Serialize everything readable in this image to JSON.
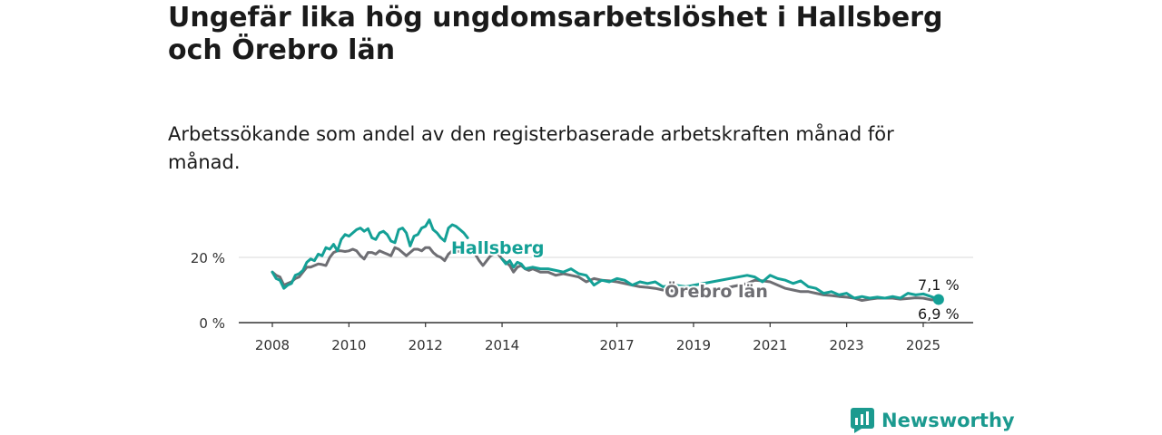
{
  "title": "Ungefär lika hög ungdomsarbetslöshet i Hallsberg och Örebro län",
  "subtitle": "Arbetssökande som andel av den registerbaserade arbetskraften månad för månad.",
  "brand": {
    "name": "Newsworthy",
    "icon": "newsworthy-logo-icon"
  },
  "colors": {
    "hallsberg": "#14a096",
    "orebro": "#6e6e73",
    "grid": "#d9d9d9",
    "axis": "#333333"
  },
  "chart_data": {
    "type": "line",
    "title": "Ungefär lika hög ungdomsarbetslöshet i Hallsberg och Örebro län",
    "subtitle": "Arbetssökande som andel av den registerbaserade arbetskraften månad för månad.",
    "x_ticks": [
      "2008",
      "2010",
      "2012",
      "2014",
      "2017",
      "2019",
      "2021",
      "2023",
      "2025"
    ],
    "y_ticks": [
      "0 %",
      "20 %"
    ],
    "ylim": [
      0,
      32
    ],
    "xlim": [
      2007.9,
      2026.3
    ],
    "grid": "horizontal",
    "legend": "inline labels",
    "series": [
      {
        "name": "Hallsberg",
        "label": "Hallsberg",
        "last_value_label": "7,1 %",
        "color": "#14a096",
        "points": [
          [
            2008.0,
            15.5
          ],
          [
            2008.1,
            13.5
          ],
          [
            2008.2,
            13.0
          ],
          [
            2008.3,
            10.5
          ],
          [
            2008.4,
            11.5
          ],
          [
            2008.5,
            12.0
          ],
          [
            2008.6,
            14.5
          ],
          [
            2008.7,
            15.0
          ],
          [
            2008.8,
            16.0
          ],
          [
            2008.9,
            18.5
          ],
          [
            2009.0,
            19.5
          ],
          [
            2009.1,
            19.0
          ],
          [
            2009.2,
            21.0
          ],
          [
            2009.3,
            20.5
          ],
          [
            2009.4,
            23.0
          ],
          [
            2009.5,
            22.5
          ],
          [
            2009.6,
            24.0
          ],
          [
            2009.7,
            22.0
          ],
          [
            2009.8,
            25.5
          ],
          [
            2009.9,
            27.0
          ],
          [
            2010.0,
            26.5
          ],
          [
            2010.1,
            27.5
          ],
          [
            2010.2,
            28.5
          ],
          [
            2010.3,
            29.0
          ],
          [
            2010.4,
            28.0
          ],
          [
            2010.5,
            28.8
          ],
          [
            2010.6,
            26.0
          ],
          [
            2010.7,
            25.5
          ],
          [
            2010.8,
            27.5
          ],
          [
            2010.9,
            28.0
          ],
          [
            2011.0,
            27.0
          ],
          [
            2011.1,
            25.0
          ],
          [
            2011.2,
            24.5
          ],
          [
            2011.3,
            28.5
          ],
          [
            2011.4,
            29.0
          ],
          [
            2011.5,
            27.5
          ],
          [
            2011.6,
            23.5
          ],
          [
            2011.7,
            26.5
          ],
          [
            2011.8,
            27.0
          ],
          [
            2011.9,
            29.0
          ],
          [
            2012.0,
            29.5
          ],
          [
            2012.1,
            31.5
          ],
          [
            2012.2,
            28.5
          ],
          [
            2012.3,
            27.5
          ],
          [
            2012.4,
            26.0
          ],
          [
            2012.5,
            25.0
          ],
          [
            2012.6,
            29.0
          ],
          [
            2012.7,
            30.0
          ],
          [
            2012.8,
            29.5
          ],
          [
            2012.9,
            28.5
          ],
          [
            2013.0,
            27.5
          ],
          [
            2013.1,
            26.0
          ]
        ]
      },
      {
        "name": "Örebro län",
        "label": "Örebro län",
        "last_value_label": "6,9 %",
        "color": "#6e6e73",
        "points": [
          [
            2008.0,
            15.5
          ],
          [
            2008.1,
            14.5
          ],
          [
            2008.2,
            14.0
          ],
          [
            2008.3,
            11.5
          ],
          [
            2008.4,
            12.0
          ],
          [
            2008.5,
            12.5
          ],
          [
            2008.6,
            13.5
          ],
          [
            2008.7,
            14.0
          ],
          [
            2008.8,
            15.5
          ],
          [
            2008.9,
            17.0
          ],
          [
            2009.0,
            17.0
          ],
          [
            2009.1,
            17.5
          ],
          [
            2009.2,
            18.0
          ],
          [
            2009.3,
            17.8
          ],
          [
            2009.4,
            17.5
          ],
          [
            2009.5,
            20.0
          ],
          [
            2009.6,
            21.5
          ],
          [
            2009.7,
            22.0
          ],
          [
            2009.8,
            22.0
          ],
          [
            2009.9,
            21.8
          ],
          [
            2010.0,
            22.0
          ],
          [
            2010.1,
            22.5
          ],
          [
            2010.2,
            22.0
          ],
          [
            2010.3,
            20.5
          ],
          [
            2010.4,
            19.5
          ],
          [
            2010.5,
            21.5
          ],
          [
            2010.6,
            21.5
          ],
          [
            2010.7,
            21.0
          ],
          [
            2010.8,
            22.0
          ],
          [
            2010.9,
            21.5
          ],
          [
            2011.0,
            21.0
          ],
          [
            2011.1,
            20.5
          ],
          [
            2011.2,
            23.0
          ],
          [
            2011.3,
            22.5
          ],
          [
            2011.4,
            21.5
          ],
          [
            2011.5,
            20.5
          ],
          [
            2011.6,
            21.5
          ],
          [
            2011.7,
            22.5
          ],
          [
            2011.8,
            22.5
          ],
          [
            2011.9,
            22.0
          ],
          [
            2012.0,
            23.0
          ],
          [
            2012.1,
            23.0
          ],
          [
            2012.2,
            21.5
          ],
          [
            2012.3,
            20.5
          ],
          [
            2012.4,
            20.0
          ],
          [
            2012.5,
            19.0
          ],
          [
            2012.6,
            21.0
          ],
          [
            2012.7,
            22.0
          ],
          [
            2012.8,
            22.0
          ],
          [
            2013.3,
            21.0
          ],
          [
            2013.4,
            19.0
          ],
          [
            2013.5,
            17.5
          ],
          [
            2013.6,
            19.0
          ],
          [
            2013.7,
            20.5
          ],
          [
            2013.8,
            21.0
          ],
          [
            2013.9,
            21.0
          ],
          [
            2014.0,
            19.5
          ],
          [
            2014.1,
            18.5
          ],
          [
            2014.2,
            17.5
          ],
          [
            2014.3,
            15.5
          ],
          [
            2014.4,
            17.0
          ],
          [
            2014.5,
            17.5
          ],
          [
            2014.6,
            16.5
          ],
          [
            2014.7,
            16.0
          ],
          [
            2014.8,
            16.5
          ],
          [
            2014.9,
            16.0
          ],
          [
            2015.0,
            15.5
          ],
          [
            2015.2,
            15.5
          ],
          [
            2015.4,
            14.5
          ],
          [
            2015.6,
            15.0
          ],
          [
            2015.8,
            14.5
          ],
          [
            2016.0,
            14.0
          ],
          [
            2016.2,
            12.5
          ],
          [
            2016.4,
            13.5
          ],
          [
            2016.6,
            13.0
          ],
          [
            2016.8,
            12.8
          ],
          [
            2017.0,
            12.5
          ],
          [
            2017.2,
            12.0
          ],
          [
            2017.4,
            11.5
          ],
          [
            2017.6,
            11.0
          ],
          [
            2017.8,
            10.8
          ],
          [
            2018.0,
            10.5
          ],
          [
            2018.2,
            10.0
          ],
          [
            2018.4,
            9.8
          ],
          [
            2018.6,
            9.5
          ],
          [
            2018.8,
            9.8
          ],
          [
            2019.0,
            10.0
          ],
          [
            2019.2,
            10.0
          ],
          [
            2019.4,
            10.0
          ],
          [
            2019.6,
            10.2
          ],
          [
            2019.8,
            10.5
          ],
          [
            2020.0,
            11.0
          ],
          [
            2020.2,
            11.5
          ],
          [
            2020.4,
            12.0
          ],
          [
            2020.6,
            13.0
          ],
          [
            2020.8,
            12.8
          ],
          [
            2021.0,
            12.5
          ],
          [
            2021.2,
            11.5
          ],
          [
            2021.4,
            10.5
          ],
          [
            2021.6,
            10.0
          ],
          [
            2021.8,
            9.5
          ],
          [
            2022.0,
            9.5
          ],
          [
            2022.2,
            9.0
          ],
          [
            2022.4,
            8.5
          ],
          [
            2022.6,
            8.3
          ],
          [
            2022.8,
            8.0
          ],
          [
            2023.0,
            7.8
          ],
          [
            2023.2,
            7.5
          ],
          [
            2023.4,
            6.8
          ],
          [
            2023.6,
            7.2
          ],
          [
            2023.8,
            7.5
          ],
          [
            2024.0,
            7.5
          ],
          [
            2024.2,
            7.5
          ],
          [
            2024.4,
            7.2
          ],
          [
            2024.6,
            7.4
          ],
          [
            2024.8,
            7.6
          ],
          [
            2025.0,
            7.5
          ],
          [
            2025.2,
            7.0
          ],
          [
            2025.4,
            6.9
          ]
        ]
      },
      {
        "name": "Hallsberg",
        "color": "#14a096",
        "points": [
          [
            2014.0,
            19.5
          ],
          [
            2014.1,
            18.0
          ],
          [
            2014.2,
            19.0
          ],
          [
            2014.3,
            17.0
          ],
          [
            2014.4,
            18.5
          ],
          [
            2014.5,
            18.0
          ],
          [
            2014.6,
            16.5
          ],
          [
            2014.8,
            17.0
          ],
          [
            2015.0,
            16.5
          ],
          [
            2015.2,
            16.5
          ],
          [
            2015.4,
            16.0
          ],
          [
            2015.6,
            15.5
          ],
          [
            2015.8,
            16.5
          ],
          [
            2016.0,
            15.0
          ],
          [
            2016.2,
            14.5
          ],
          [
            2016.4,
            11.5
          ],
          [
            2016.6,
            13.0
          ],
          [
            2016.8,
            12.5
          ],
          [
            2017.0,
            13.5
          ],
          [
            2017.2,
            13.0
          ],
          [
            2017.4,
            11.5
          ],
          [
            2017.6,
            12.5
          ],
          [
            2017.8,
            12.0
          ],
          [
            2018.0,
            12.5
          ],
          [
            2018.2,
            11.0
          ],
          [
            2018.5,
            11.5
          ],
          [
            2018.8,
            11.0
          ],
          [
            2020.4,
            14.5
          ],
          [
            2020.6,
            14.0
          ],
          [
            2020.8,
            12.5
          ],
          [
            2021.0,
            14.5
          ],
          [
            2021.2,
            13.5
          ],
          [
            2021.4,
            13.0
          ],
          [
            2021.6,
            12.0
          ],
          [
            2021.8,
            12.8
          ],
          [
            2022.0,
            11.0
          ],
          [
            2022.2,
            10.5
          ],
          [
            2022.4,
            9.0
          ],
          [
            2022.6,
            9.5
          ],
          [
            2022.8,
            8.5
          ],
          [
            2023.0,
            9.0
          ],
          [
            2023.2,
            7.5
          ],
          [
            2023.4,
            8.0
          ],
          [
            2023.6,
            7.5
          ],
          [
            2023.8,
            7.8
          ],
          [
            2024.0,
            7.5
          ],
          [
            2024.2,
            8.0
          ],
          [
            2024.4,
            7.5
          ],
          [
            2024.6,
            9.0
          ],
          [
            2024.8,
            8.5
          ],
          [
            2025.0,
            8.8
          ],
          [
            2025.2,
            8.0
          ],
          [
            2025.4,
            7.1
          ]
        ]
      }
    ]
  }
}
